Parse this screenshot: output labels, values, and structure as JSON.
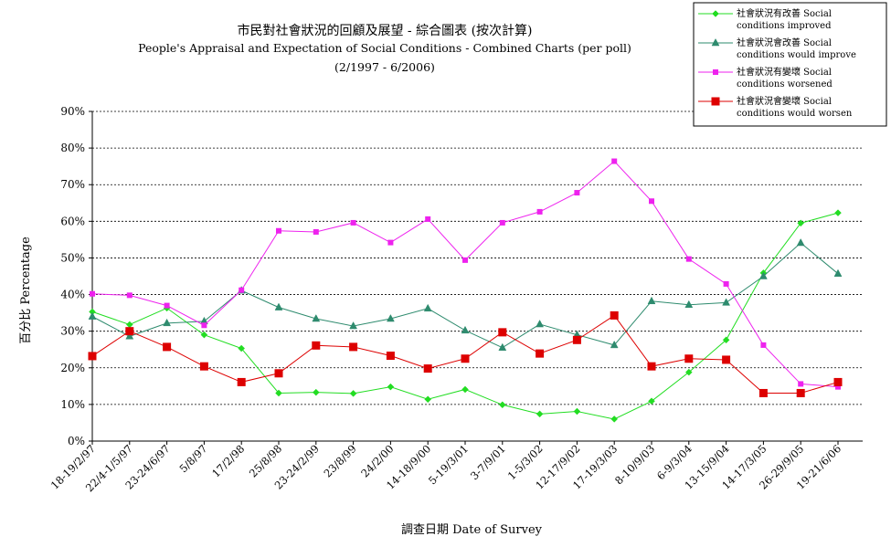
{
  "chart_data": {
    "type": "line",
    "title": "市民對社會狀況的回顧及展望 - 綜合圖表 (按次計算)",
    "subtitle": "People's Appraisal and Expectation of Social Conditions - Combined Charts  (per poll)",
    "period": "(2/1997 - 6/2006)",
    "xlabel": "調查日期 Date of Survey",
    "ylabel": "百分比 Percentage",
    "ylim": [
      0,
      90
    ],
    "yticks": [
      "0%",
      "10%",
      "20%",
      "30%",
      "40%",
      "50%",
      "60%",
      "70%",
      "80%",
      "90%"
    ],
    "grid": "horizontal-dashed",
    "legend_position": "top-right",
    "categories": [
      "18-19/2/97",
      "22/4-1/5/97",
      "23-24/6/97",
      "5/8/97",
      "17/2/98",
      "25/8/98",
      "23-24/2/99",
      "23/8/99",
      "24/2/00",
      "14-18/9/00",
      "5-19/3/01",
      "3-7/9/01",
      "1-5/3/02",
      "12-17/9/02",
      "17-19/3/03",
      "8-10/9/03",
      "6-9/3/04",
      "13-15/9/04",
      "14-17/3/05",
      "26-29/9/05",
      "19-21/6/06"
    ],
    "series": [
      {
        "name_line1": "社會狀況有改善 Social",
        "name_line2": "conditions improved",
        "color": "#22dd22",
        "marker": "diamond",
        "values": [
          35.3,
          31.8,
          36.3,
          29.0,
          25.3,
          13.1,
          13.3,
          13.0,
          14.8,
          11.4,
          14.1,
          9.9,
          7.4,
          8.1,
          6.0,
          10.9,
          18.8,
          27.6,
          45.9,
          59.5,
          62.3
        ]
      },
      {
        "name_line1": "社會狀況會改善 Social",
        "name_line2": "conditions would improve",
        "color": "#2e8b6e",
        "marker": "triangle",
        "values": [
          34.0,
          28.6,
          32.2,
          32.7,
          41.1,
          36.5,
          33.4,
          31.4,
          33.4,
          36.2,
          30.2,
          25.5,
          31.9,
          29.0,
          26.2,
          38.2,
          37.2,
          37.8,
          45.0,
          54.1,
          45.7
        ]
      },
      {
        "name_line1": "社會狀況有變壞 Social",
        "name_line2": "conditions worsened",
        "color": "#ee22ee",
        "marker": "square-small",
        "values": [
          40.2,
          39.8,
          37.0,
          31.6,
          41.2,
          57.4,
          57.1,
          59.6,
          54.2,
          60.6,
          49.4,
          59.6,
          62.6,
          67.8,
          76.4,
          65.5,
          49.7,
          42.9,
          26.2,
          15.6,
          14.8
        ]
      },
      {
        "name_line1": "社會狀況會變壞 Social",
        "name_line2": "conditions would worsen",
        "color": "#dd0000",
        "marker": "square-large",
        "values": [
          23.2,
          30.0,
          25.7,
          20.4,
          16.1,
          18.5,
          26.1,
          25.7,
          23.3,
          19.8,
          22.5,
          29.7,
          23.9,
          27.6,
          34.3,
          20.4,
          22.5,
          22.2,
          13.1,
          13.1,
          16.1
        ]
      }
    ]
  }
}
